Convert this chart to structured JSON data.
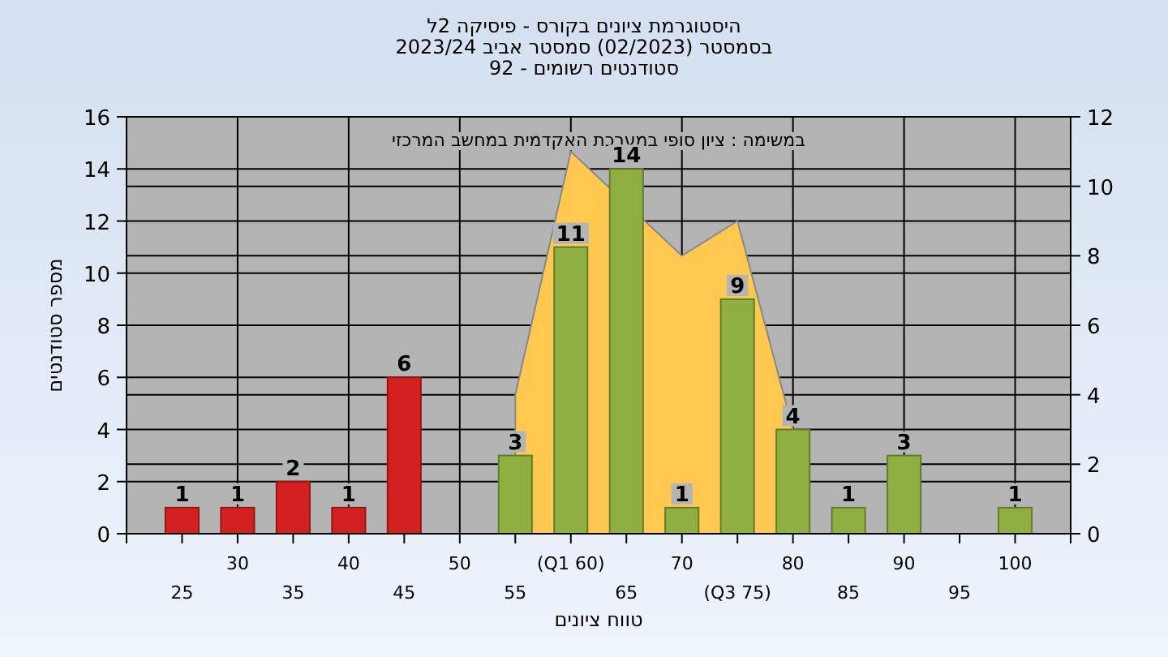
{
  "chart_data": {
    "type": "bar",
    "title": "היסטוגרמת ציונים בקורס - פיסיקה 2ל",
    "subtitle": "בסמסטר  (02/2023)  סמסטר אביב 2023/24\nסטודנטים רשומים - 92",
    "xlabel": "טווח ציונים",
    "ylabel": "מספר סטודנטים",
    "annotations": [
      "במשימה : ציון סופי במערכת האקדמית במחשב המרכזי"
    ],
    "x": [
      25,
      30,
      35,
      40,
      45,
      50,
      55,
      60,
      65,
      70,
      75,
      80,
      85,
      90,
      95,
      100
    ],
    "series": [
      {
        "type": "area",
        "axis": "y2",
        "color": "#ffc850",
        "x": [
          55,
          60,
          70,
          75,
          80
        ],
        "values": [
          4,
          11,
          8,
          9,
          3
        ]
      },
      {
        "colors": [
          "#d42020",
          "#d42020",
          "#d42020",
          "#d42020",
          "#d42020",
          "#d42020",
          "#8fb040",
          "#8fb040",
          "#8fb040",
          "#8fb040",
          "#8fb040",
          "#8fb040",
          "#8fb040",
          "#8fb040",
          "#8fb040",
          "#8fb040"
        ],
        "values": [
          1,
          1,
          2,
          1,
          6,
          0,
          3,
          11,
          14,
          1,
          9,
          4,
          1,
          3,
          0,
          1
        ],
        "value_labels": [
          "1",
          "1",
          "2",
          "1",
          "6",
          null,
          "3",
          "11",
          "14",
          "1",
          "9",
          "4",
          "1",
          "3",
          null,
          "1"
        ]
      }
    ],
    "xlim": [
      20,
      105
    ],
    "xticks": [
      {
        "value": 20,
        "label": null
      },
      30,
      40,
      50,
      {
        "value": 60,
        "label": "(Q1 60)"
      },
      70,
      80,
      90,
      100
    ],
    "x2lim": [
      20,
      105
    ],
    "x2ticks": [
      25,
      35,
      45,
      55,
      65,
      {
        "value": 75,
        "label": "(Q3 75)"
      },
      85,
      95,
      {
        "value": 105,
        "label": null
      }
    ],
    "ylim": [
      0,
      16
    ],
    "yticks": [
      0,
      2,
      4,
      6,
      8,
      10,
      12,
      14,
      16
    ],
    "y2lim": [
      0,
      12
    ],
    "y2ticks": [
      0,
      2,
      4,
      6,
      8,
      10,
      12
    ],
    "grid": true
  }
}
